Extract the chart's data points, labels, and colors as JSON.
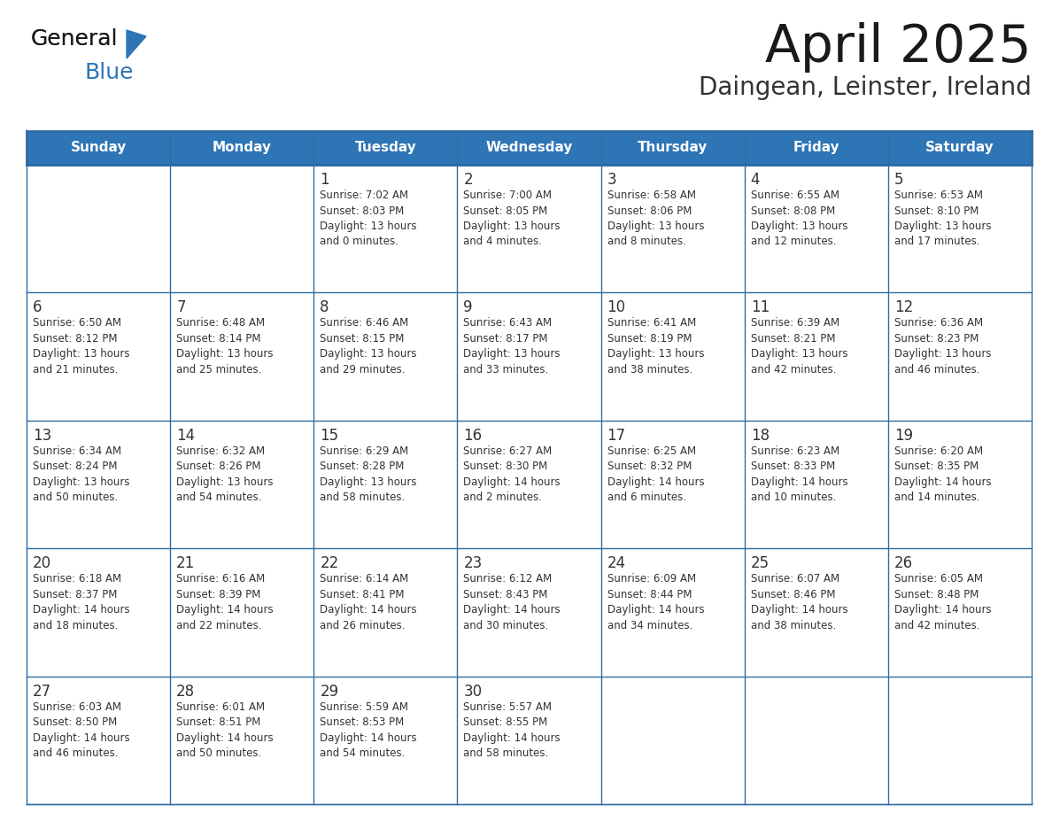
{
  "title": "April 2025",
  "subtitle": "Daingean, Leinster, Ireland",
  "days_of_week": [
    "Sunday",
    "Monday",
    "Tuesday",
    "Wednesday",
    "Thursday",
    "Friday",
    "Saturday"
  ],
  "header_bg": "#2E75B6",
  "header_text": "#FFFFFF",
  "cell_bg": "#FFFFFF",
  "cell_bg_alt": "#F5F5F5",
  "border_color": "#2E6DA4",
  "text_color": "#333333",
  "title_color": "#1a1a1a",
  "subtitle_color": "#333333",
  "logo_color_general": "#1a1a1a",
  "logo_color_blue": "#2E75B6",
  "logo_triangle_color": "#2E75B6",
  "calendar_data": [
    [
      {
        "day": null,
        "info": ""
      },
      {
        "day": null,
        "info": ""
      },
      {
        "day": 1,
        "info": "Sunrise: 7:02 AM\nSunset: 8:03 PM\nDaylight: 13 hours\nand 0 minutes."
      },
      {
        "day": 2,
        "info": "Sunrise: 7:00 AM\nSunset: 8:05 PM\nDaylight: 13 hours\nand 4 minutes."
      },
      {
        "day": 3,
        "info": "Sunrise: 6:58 AM\nSunset: 8:06 PM\nDaylight: 13 hours\nand 8 minutes."
      },
      {
        "day": 4,
        "info": "Sunrise: 6:55 AM\nSunset: 8:08 PM\nDaylight: 13 hours\nand 12 minutes."
      },
      {
        "day": 5,
        "info": "Sunrise: 6:53 AM\nSunset: 8:10 PM\nDaylight: 13 hours\nand 17 minutes."
      }
    ],
    [
      {
        "day": 6,
        "info": "Sunrise: 6:50 AM\nSunset: 8:12 PM\nDaylight: 13 hours\nand 21 minutes."
      },
      {
        "day": 7,
        "info": "Sunrise: 6:48 AM\nSunset: 8:14 PM\nDaylight: 13 hours\nand 25 minutes."
      },
      {
        "day": 8,
        "info": "Sunrise: 6:46 AM\nSunset: 8:15 PM\nDaylight: 13 hours\nand 29 minutes."
      },
      {
        "day": 9,
        "info": "Sunrise: 6:43 AM\nSunset: 8:17 PM\nDaylight: 13 hours\nand 33 minutes."
      },
      {
        "day": 10,
        "info": "Sunrise: 6:41 AM\nSunset: 8:19 PM\nDaylight: 13 hours\nand 38 minutes."
      },
      {
        "day": 11,
        "info": "Sunrise: 6:39 AM\nSunset: 8:21 PM\nDaylight: 13 hours\nand 42 minutes."
      },
      {
        "day": 12,
        "info": "Sunrise: 6:36 AM\nSunset: 8:23 PM\nDaylight: 13 hours\nand 46 minutes."
      }
    ],
    [
      {
        "day": 13,
        "info": "Sunrise: 6:34 AM\nSunset: 8:24 PM\nDaylight: 13 hours\nand 50 minutes."
      },
      {
        "day": 14,
        "info": "Sunrise: 6:32 AM\nSunset: 8:26 PM\nDaylight: 13 hours\nand 54 minutes."
      },
      {
        "day": 15,
        "info": "Sunrise: 6:29 AM\nSunset: 8:28 PM\nDaylight: 13 hours\nand 58 minutes."
      },
      {
        "day": 16,
        "info": "Sunrise: 6:27 AM\nSunset: 8:30 PM\nDaylight: 14 hours\nand 2 minutes."
      },
      {
        "day": 17,
        "info": "Sunrise: 6:25 AM\nSunset: 8:32 PM\nDaylight: 14 hours\nand 6 minutes."
      },
      {
        "day": 18,
        "info": "Sunrise: 6:23 AM\nSunset: 8:33 PM\nDaylight: 14 hours\nand 10 minutes."
      },
      {
        "day": 19,
        "info": "Sunrise: 6:20 AM\nSunset: 8:35 PM\nDaylight: 14 hours\nand 14 minutes."
      }
    ],
    [
      {
        "day": 20,
        "info": "Sunrise: 6:18 AM\nSunset: 8:37 PM\nDaylight: 14 hours\nand 18 minutes."
      },
      {
        "day": 21,
        "info": "Sunrise: 6:16 AM\nSunset: 8:39 PM\nDaylight: 14 hours\nand 22 minutes."
      },
      {
        "day": 22,
        "info": "Sunrise: 6:14 AM\nSunset: 8:41 PM\nDaylight: 14 hours\nand 26 minutes."
      },
      {
        "day": 23,
        "info": "Sunrise: 6:12 AM\nSunset: 8:43 PM\nDaylight: 14 hours\nand 30 minutes."
      },
      {
        "day": 24,
        "info": "Sunrise: 6:09 AM\nSunset: 8:44 PM\nDaylight: 14 hours\nand 34 minutes."
      },
      {
        "day": 25,
        "info": "Sunrise: 6:07 AM\nSunset: 8:46 PM\nDaylight: 14 hours\nand 38 minutes."
      },
      {
        "day": 26,
        "info": "Sunrise: 6:05 AM\nSunset: 8:48 PM\nDaylight: 14 hours\nand 42 minutes."
      }
    ],
    [
      {
        "day": 27,
        "info": "Sunrise: 6:03 AM\nSunset: 8:50 PM\nDaylight: 14 hours\nand 46 minutes."
      },
      {
        "day": 28,
        "info": "Sunrise: 6:01 AM\nSunset: 8:51 PM\nDaylight: 14 hours\nand 50 minutes."
      },
      {
        "day": 29,
        "info": "Sunrise: 5:59 AM\nSunset: 8:53 PM\nDaylight: 14 hours\nand 54 minutes."
      },
      {
        "day": 30,
        "info": "Sunrise: 5:57 AM\nSunset: 8:55 PM\nDaylight: 14 hours\nand 58 minutes."
      },
      {
        "day": null,
        "info": ""
      },
      {
        "day": null,
        "info": ""
      },
      {
        "day": null,
        "info": ""
      }
    ]
  ]
}
